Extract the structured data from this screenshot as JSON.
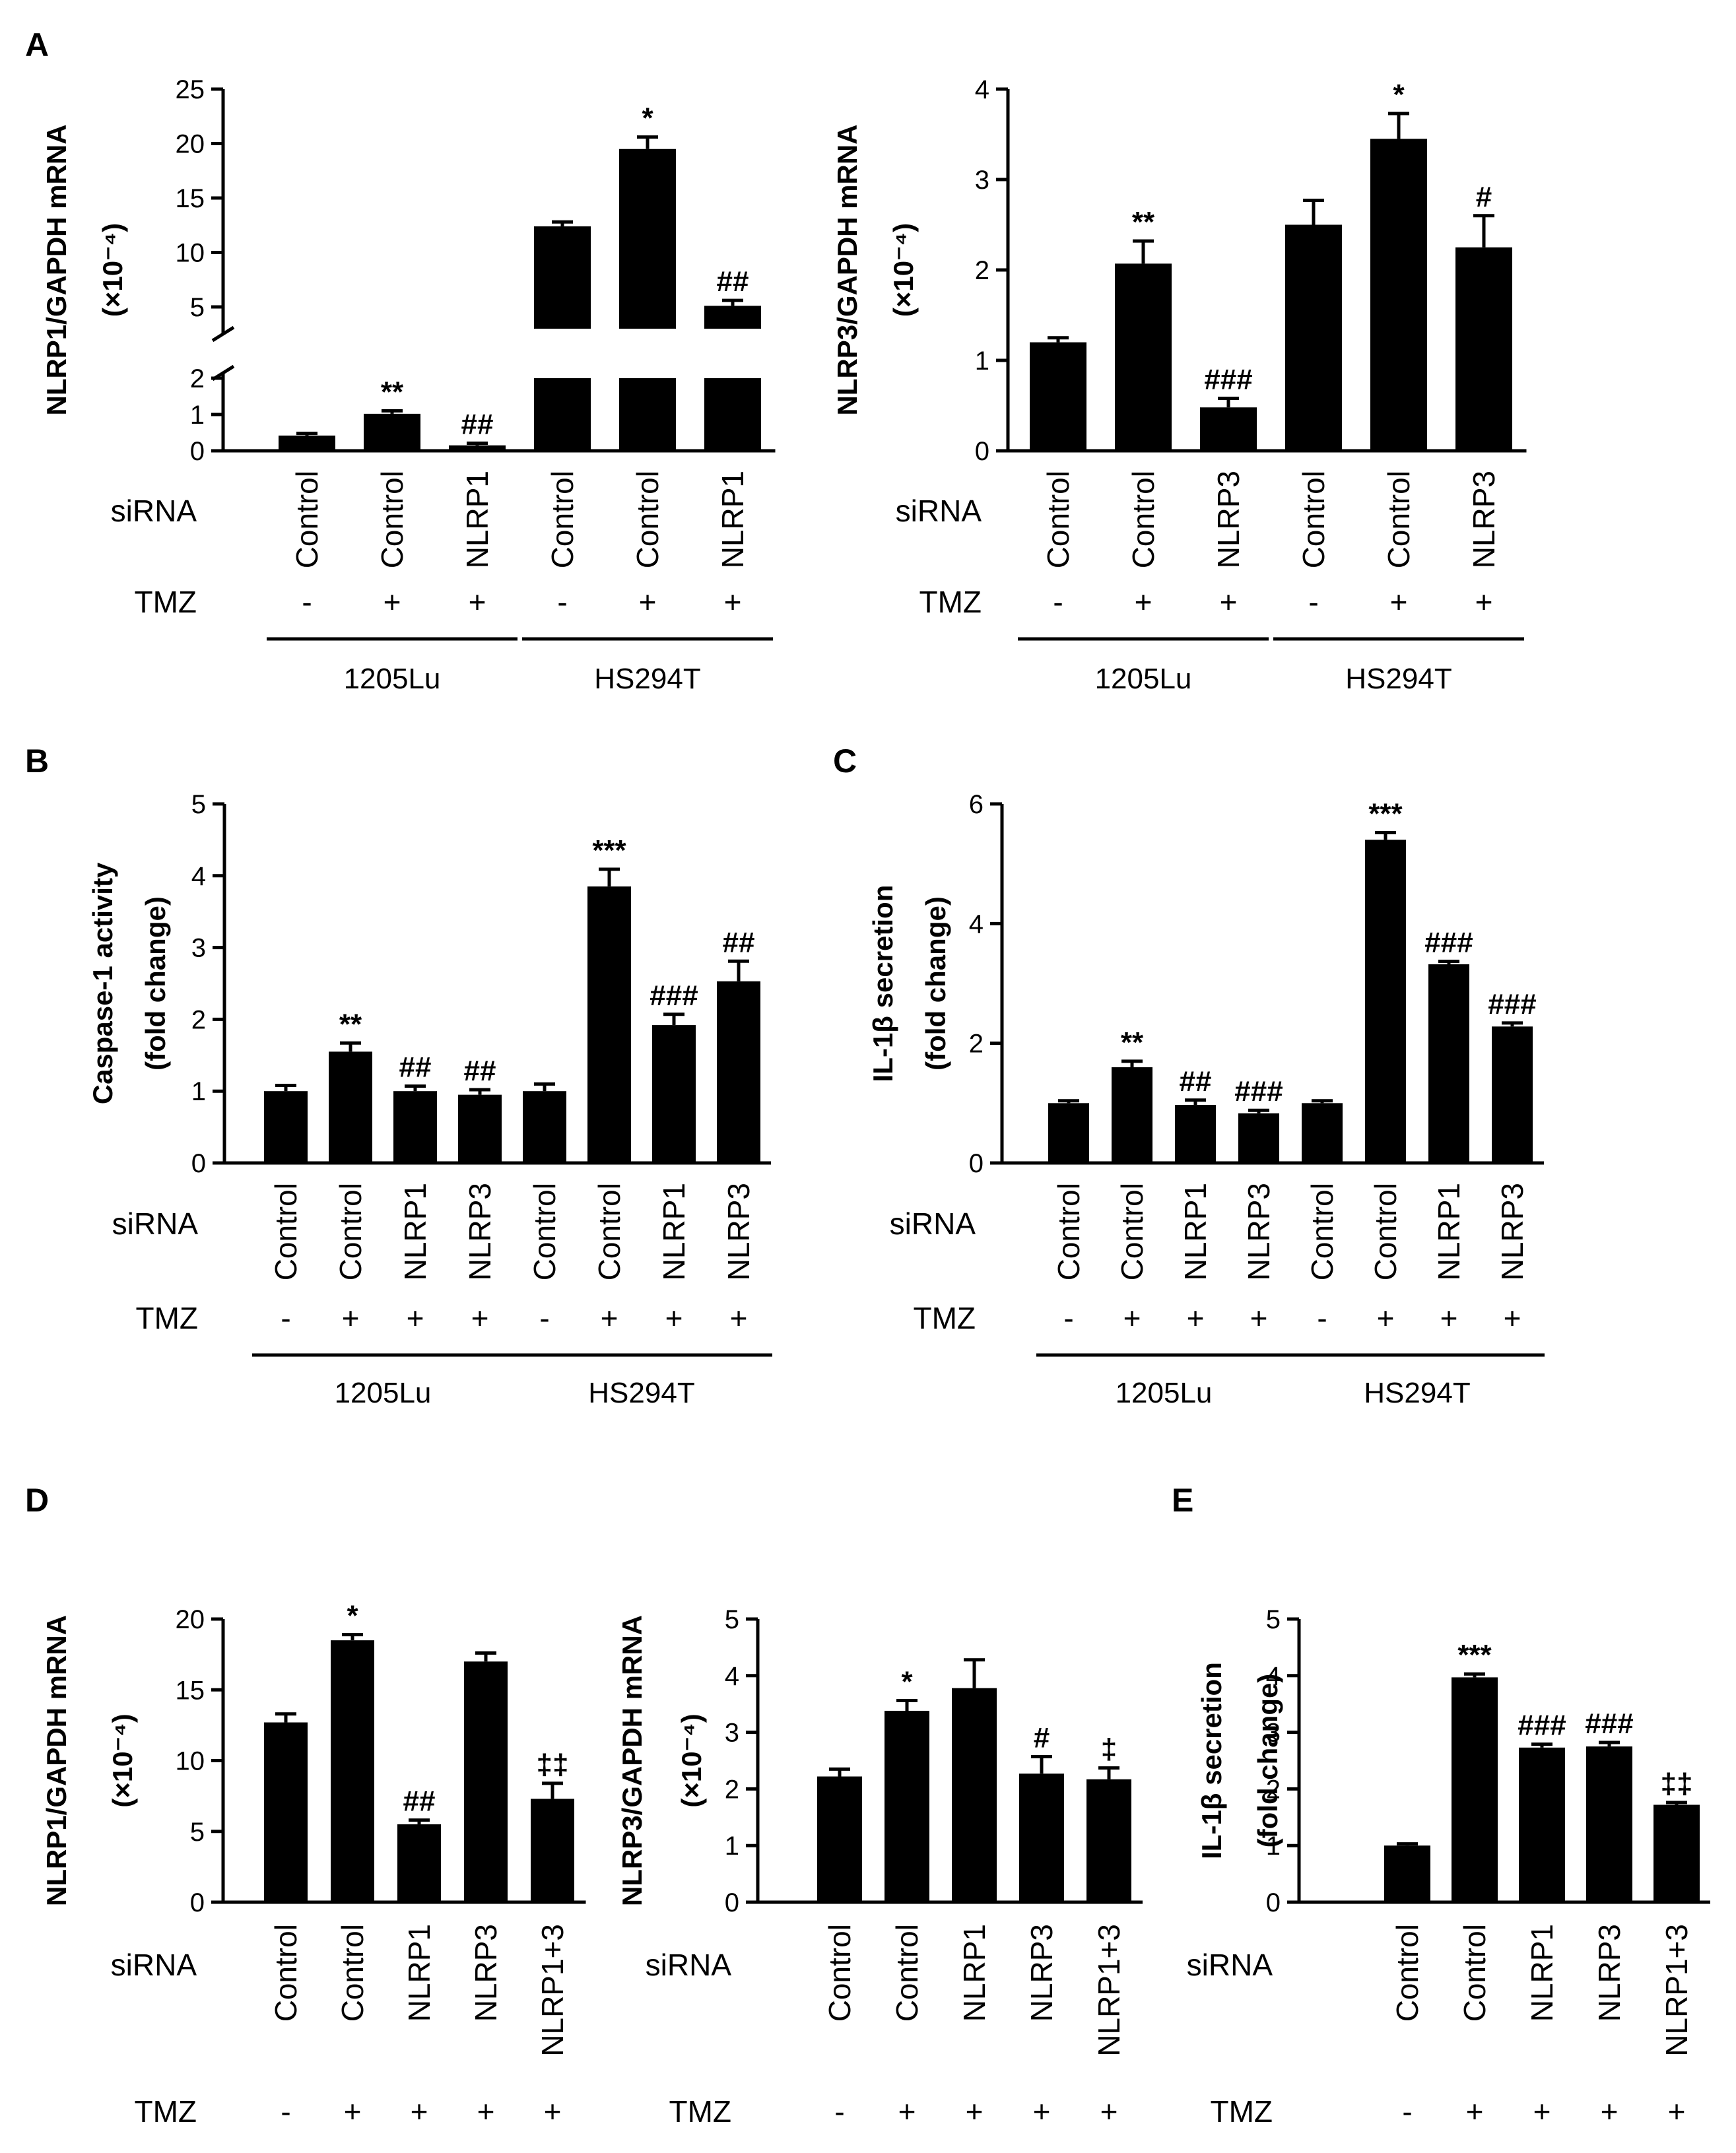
{
  "row_labels": {
    "sirna": "siRNA",
    "tmz": "TMZ"
  },
  "chart_data": [
    {
      "id": "A1",
      "panel_label": "A",
      "type": "bar",
      "ylabel": "NLRP1/GAPDH mRNA",
      "yunit": "(×10⁻⁴)",
      "axis_break": true,
      "ylim_lower": [
        0,
        2
      ],
      "ylim_upper": [
        3,
        25
      ],
      "yticks_lower": [
        0,
        1,
        2
      ],
      "yticks_upper": [
        5,
        10,
        15,
        20,
        25
      ],
      "categories": [
        "Control",
        "Control",
        "NLRP1",
        "Control",
        "Control",
        "NLRP1"
      ],
      "tmz": [
        "-",
        "+",
        "+",
        "-",
        "+",
        "+"
      ],
      "groups": [
        {
          "name": "1205Lu",
          "start": 0,
          "end": 2
        },
        {
          "name": "HS294T",
          "start": 3,
          "end": 5
        }
      ],
      "values": [
        0.42,
        1.02,
        0.15,
        12.4,
        19.5,
        5.1
      ],
      "errors": [
        0.06,
        0.08,
        0.06,
        0.4,
        1.1,
        0.5
      ],
      "significance": [
        "",
        "**",
        "##",
        "",
        "*",
        "##"
      ]
    },
    {
      "id": "A2",
      "panel_label": "",
      "type": "bar",
      "ylabel": "NLRP3/GAPDH mRNA",
      "yunit": "(×10⁻⁴)",
      "ylim": [
        0,
        4
      ],
      "yticks": [
        0,
        1,
        2,
        3,
        4
      ],
      "categories": [
        "Control",
        "Control",
        "NLRP3",
        "Control",
        "Control",
        "NLRP3"
      ],
      "tmz": [
        "-",
        "+",
        "+",
        "-",
        "+",
        "+"
      ],
      "groups": [
        {
          "name": "1205Lu",
          "start": 0,
          "end": 2
        },
        {
          "name": "HS294T",
          "start": 3,
          "end": 5
        }
      ],
      "values": [
        1.2,
        2.07,
        0.48,
        2.5,
        3.45,
        2.25
      ],
      "errors": [
        0.05,
        0.25,
        0.1,
        0.27,
        0.28,
        0.35
      ],
      "significance": [
        "",
        "**",
        "###",
        "",
        "*",
        "#"
      ]
    },
    {
      "id": "B",
      "panel_label": "B",
      "type": "bar",
      "ylabel": "Caspase-1 activity",
      "yunit": "(fold change)",
      "ylim": [
        0,
        5
      ],
      "yticks": [
        0,
        1,
        2,
        3,
        4,
        5
      ],
      "categories": [
        "Control",
        "Control",
        "NLRP1",
        "NLRP3",
        "Control",
        "Control",
        "NLRP1",
        "NLRP3"
      ],
      "tmz": [
        "-",
        "+",
        "+",
        "+",
        "-",
        "+",
        "+",
        "+"
      ],
      "groups": [
        {
          "name": "1205Lu",
          "start": 0,
          "end": 3
        },
        {
          "name": "HS294T",
          "start": 4,
          "end": 7
        }
      ],
      "values": [
        1.0,
        1.55,
        1.0,
        0.95,
        1.0,
        3.85,
        1.92,
        2.53
      ],
      "errors": [
        0.08,
        0.12,
        0.07,
        0.07,
        0.1,
        0.24,
        0.15,
        0.28
      ],
      "significance": [
        "",
        "**",
        "##",
        "##",
        "",
        "***",
        "###",
        "##"
      ]
    },
    {
      "id": "C",
      "panel_label": "C",
      "type": "bar",
      "ylabel": "IL-1β secretion",
      "yunit": "(fold change)",
      "ylim": [
        0,
        6
      ],
      "yticks": [
        0,
        2,
        4,
        6
      ],
      "categories": [
        "Control",
        "Control",
        "NLRP1",
        "NLRP3",
        "Control",
        "Control",
        "NLRP1",
        "NLRP3"
      ],
      "tmz": [
        "-",
        "+",
        "+",
        "+",
        "-",
        "+",
        "+",
        "+"
      ],
      "groups": [
        {
          "name": "1205Lu",
          "start": 0,
          "end": 3
        },
        {
          "name": "HS294T",
          "start": 4,
          "end": 7
        }
      ],
      "values": [
        1.0,
        1.6,
        0.97,
        0.83,
        1.0,
        5.4,
        3.32,
        2.28
      ],
      "errors": [
        0.04,
        0.1,
        0.08,
        0.05,
        0.04,
        0.12,
        0.05,
        0.06
      ],
      "significance": [
        "",
        "**",
        "##",
        "###",
        "",
        "***",
        "###",
        "###"
      ]
    },
    {
      "id": "D1",
      "panel_label": "D",
      "type": "bar",
      "ylabel": "NLRP1/GAPDH mRNA",
      "yunit": "(×10⁻⁴)",
      "ylim": [
        0,
        20
      ],
      "yticks": [
        0,
        5,
        10,
        15,
        20
      ],
      "categories": [
        "Control",
        "Control",
        "NLRP1",
        "NLRP3",
        "NLRP1+3"
      ],
      "tmz": [
        "-",
        "+",
        "+",
        "+",
        "+"
      ],
      "groups": [],
      "values": [
        12.7,
        18.5,
        5.5,
        17.0,
        7.3
      ],
      "errors": [
        0.6,
        0.4,
        0.3,
        0.6,
        1.1
      ],
      "significance": [
        "",
        "*",
        "##",
        "",
        "‡‡"
      ]
    },
    {
      "id": "D2",
      "panel_label": "",
      "type": "bar",
      "ylabel": "NLRP3/GAPDH mRNA",
      "yunit": "(×10⁻⁴)",
      "ylim": [
        0,
        5
      ],
      "yticks": [
        0,
        1,
        2,
        3,
        4,
        5
      ],
      "categories": [
        "Control",
        "Control",
        "NLRP1",
        "NLRP3",
        "NLRP1+3"
      ],
      "tmz": [
        "-",
        "+",
        "+",
        "+",
        "+"
      ],
      "groups": [],
      "values": [
        2.22,
        3.38,
        3.78,
        2.27,
        2.17
      ],
      "errors": [
        0.13,
        0.18,
        0.5,
        0.3,
        0.2
      ],
      "significance": [
        "",
        "*",
        "",
        "#",
        "‡"
      ]
    },
    {
      "id": "E",
      "panel_label": "E",
      "type": "bar",
      "ylabel": "IL-1β secretion",
      "yunit": "(fold change)",
      "ylim": [
        0,
        5
      ],
      "yticks": [
        0,
        1,
        2,
        3,
        4,
        5
      ],
      "categories": [
        "Control",
        "Control",
        "NLRP1",
        "NLRP3",
        "NLRP1+3"
      ],
      "tmz": [
        "-",
        "+",
        "+",
        "+",
        "+"
      ],
      "groups": [],
      "values": [
        1.0,
        3.97,
        2.73,
        2.75,
        1.72
      ],
      "errors": [
        0.03,
        0.06,
        0.06,
        0.07,
        0.04
      ],
      "significance": [
        "",
        "***",
        "###",
        "###",
        "‡‡"
      ]
    }
  ]
}
